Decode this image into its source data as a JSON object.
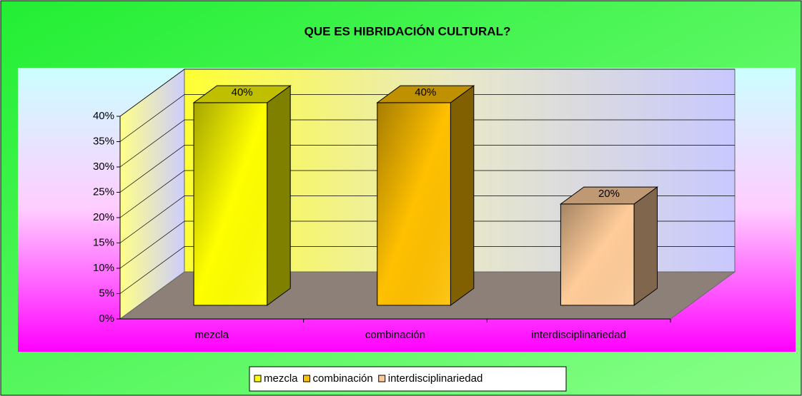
{
  "chart_data": {
    "type": "bar3d",
    "title": "QUE ES HIBRIDACIÓN CULTURAL?",
    "categories": [
      "mezcla",
      "combinación",
      "interdisciplinariedad"
    ],
    "values": [
      40,
      40,
      20
    ],
    "value_labels": [
      "40%",
      "40%",
      "20%"
    ],
    "colors": [
      "#ffff00",
      "#ffc000",
      "#ffcc99"
    ],
    "ylim": [
      0,
      40
    ],
    "yticks": [
      {
        "value": 0,
        "label": "0%"
      },
      {
        "value": 5,
        "label": "5%"
      },
      {
        "value": 10,
        "label": "10%"
      },
      {
        "value": 15,
        "label": "15%"
      },
      {
        "value": 20,
        "label": "20%"
      },
      {
        "value": 25,
        "label": "25%"
      },
      {
        "value": 30,
        "label": "30%"
      },
      {
        "value": 35,
        "label": "35%"
      },
      {
        "value": 40,
        "label": "40%"
      }
    ],
    "grid": true,
    "legend": "bottom"
  }
}
